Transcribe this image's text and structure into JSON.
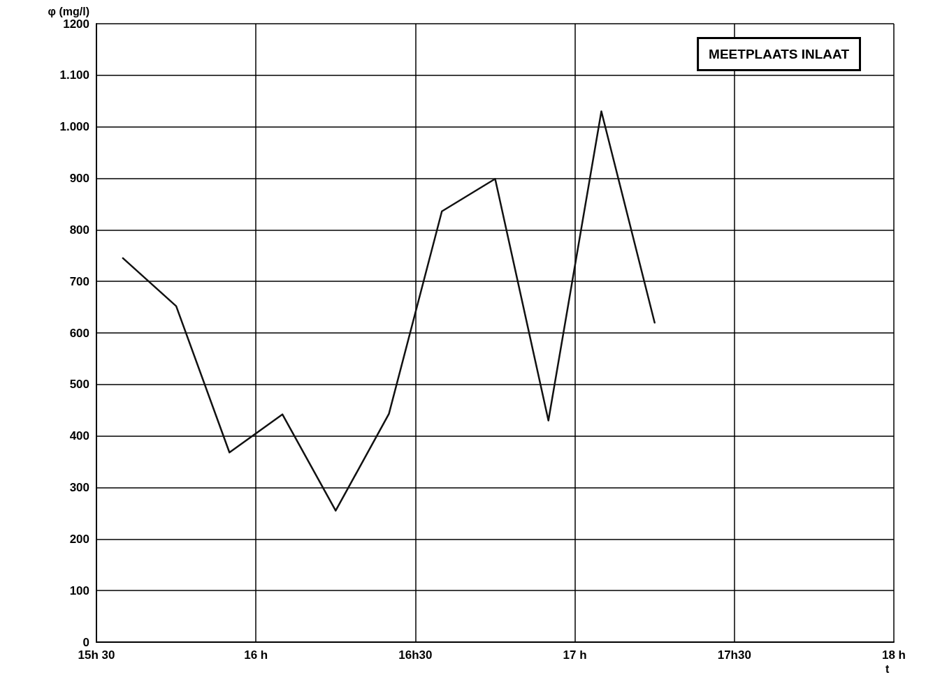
{
  "chart_data": {
    "type": "line",
    "ylabel": "φ (mg/l)",
    "xlabel": "t",
    "annotations": [
      "MEETPLAATS INLAAT"
    ],
    "x": [
      15.583,
      15.75,
      15.917,
      16.083,
      16.25,
      16.417,
      16.583,
      16.75,
      16.917,
      17.083,
      17.25
    ],
    "series": [
      {
        "color": "#111111",
        "values": [
          745,
          652,
          368,
          442,
          255,
          443,
          836,
          899,
          430,
          1030,
          620
        ]
      }
    ],
    "xlim": [
      15.5,
      18
    ],
    "xticks": [
      {
        "value": 15.5,
        "label": "15h 30"
      },
      {
        "value": 16,
        "label": "16 h"
      },
      {
        "value": 16.5,
        "label": "16h30"
      },
      {
        "value": 17,
        "label": "17 h"
      },
      {
        "value": 17.5,
        "label": "17h30"
      },
      {
        "value": 18,
        "label": "18 h"
      }
    ],
    "ylim": [
      0,
      1200
    ],
    "yticks": [
      0,
      100,
      200,
      300,
      400,
      500,
      600,
      700,
      800,
      900,
      {
        "value": 1000,
        "label": "1.000"
      },
      {
        "value": 1100,
        "label": "1.100"
      },
      1200
    ],
    "grid": true,
    "marker": "none",
    "line_style": "solid"
  }
}
